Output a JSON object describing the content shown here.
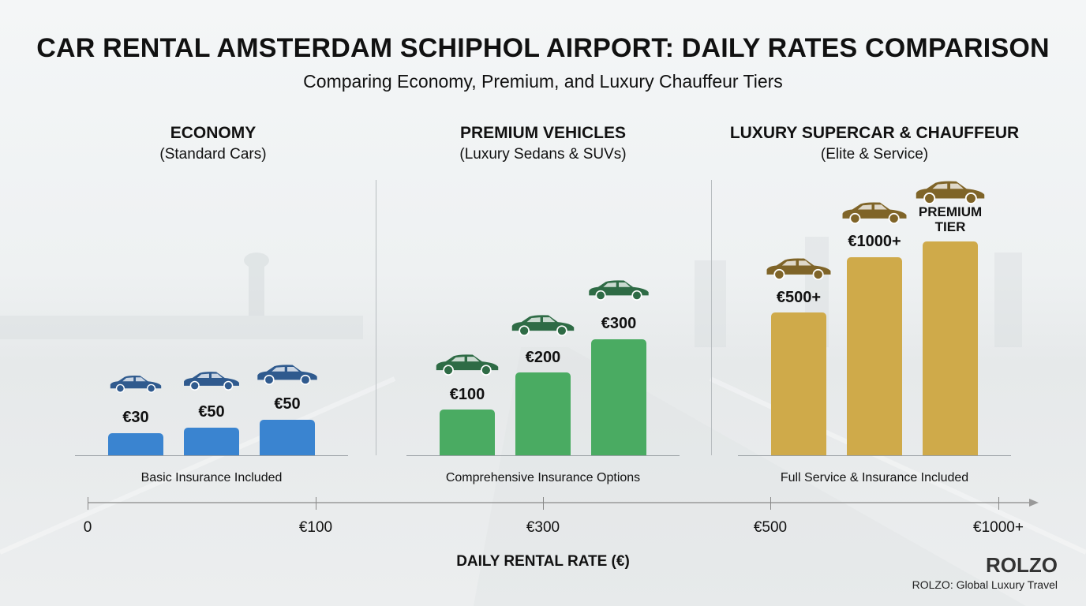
{
  "title": "CAR RENTAL AMSTERDAM SCHIPHOL AIRPORT: DAILY RATES COMPARISON",
  "subtitle": "Comparing Economy, Premium, and Luxury Chauffeur Tiers",
  "chart_data": {
    "type": "bar",
    "xlabel": "DAILY RENTAL RATE (€)",
    "x_ticks": [
      "0",
      "€100",
      "€300",
      "€500",
      "€1000+"
    ],
    "groups": [
      {
        "title": "ECONOMY",
        "subtitle": "(Standard Cars)",
        "note": "Basic Insurance Included",
        "color": "#3a84d0",
        "car_color": "#2f5a8e",
        "bars": [
          {
            "label": "€30",
            "value": 30
          },
          {
            "label": "€50",
            "value": 50
          },
          {
            "label": "€50",
            "value": 50
          }
        ]
      },
      {
        "title": "PREMIUM VEHICLES",
        "subtitle": "(Luxury Sedans & SUVs)",
        "note": "Comprehensive Insurance Options",
        "color": "#4aab62",
        "car_color": "#2e6b45",
        "bars": [
          {
            "label": "€100",
            "value": 100
          },
          {
            "label": "€200",
            "value": 200
          },
          {
            "label": "€300",
            "value": 300
          }
        ]
      },
      {
        "title": "LUXURY SUPERCAR & CHAUFFEUR",
        "subtitle": "(Elite & Service)",
        "note": "Full Service & Insurance Included",
        "color": "#cfaa4a",
        "car_color": "#7f6428",
        "bars": [
          {
            "label": "€500+",
            "value": 500
          },
          {
            "label": "€1000+",
            "value": 1000
          },
          {
            "label": "PREMIUM TIER",
            "value": null
          }
        ]
      }
    ]
  },
  "brand": {
    "name": "ROLZO",
    "tagline": "ROLZO: Global Luxury Travel"
  }
}
